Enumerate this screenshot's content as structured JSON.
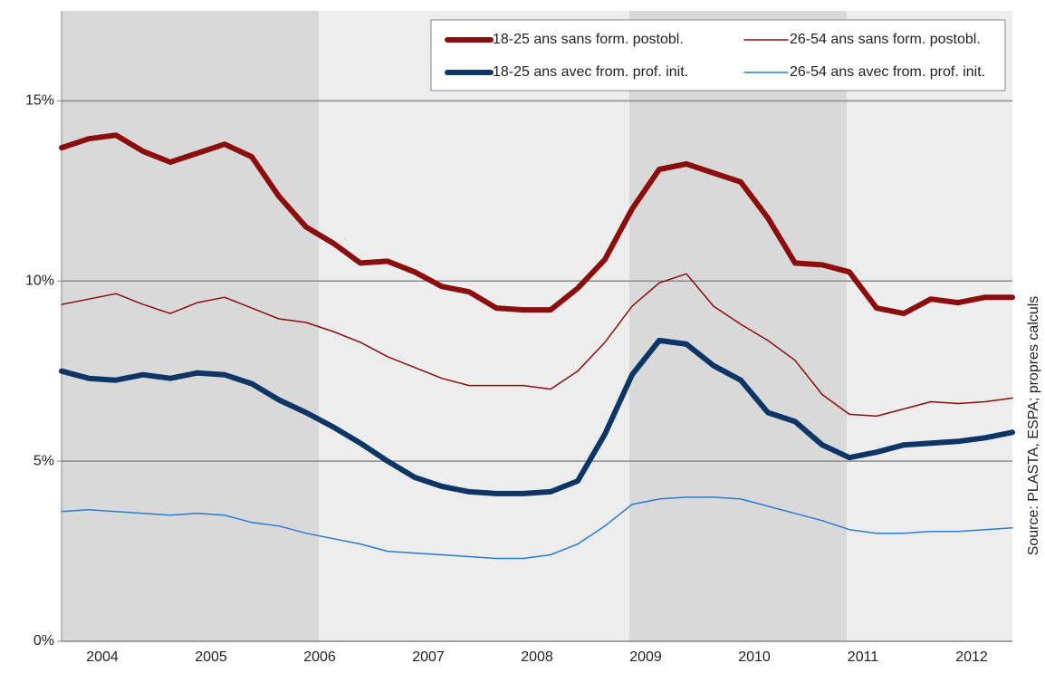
{
  "chart_data": {
    "type": "line",
    "source": "Source: PLASTA, ESPA; propres calculs",
    "categories": [
      null,
      "2004",
      null,
      null,
      null,
      "2005",
      null,
      null,
      null,
      "2006",
      null,
      null,
      null,
      "2007",
      null,
      null,
      null,
      "2008",
      null,
      null,
      null,
      "2009",
      null,
      null,
      null,
      "2010",
      null,
      null,
      null,
      "2011",
      null,
      null,
      null,
      "2012",
      null,
      null
    ],
    "series": [
      {
        "name": "18-25 ans sans form. postobl.",
        "color": "#8b0d0d",
        "line_width": 6,
        "values": [
          13.7,
          13.95,
          14.05,
          13.6,
          13.3,
          13.55,
          13.8,
          13.45,
          12.35,
          11.5,
          11.05,
          10.5,
          10.55,
          10.25,
          9.85,
          9.7,
          9.25,
          9.2,
          9.2,
          9.8,
          10.6,
          12.0,
          13.1,
          13.25,
          13.0,
          12.75,
          11.75,
          10.5,
          10.45,
          10.25,
          9.25,
          9.1,
          9.5,
          9.4,
          9.55,
          9.55
        ]
      },
      {
        "name": "26-54 ans sans form. postobl.",
        "color": "#8b0d0d",
        "line_width": 1.5,
        "values": [
          9.35,
          9.5,
          9.65,
          9.35,
          9.1,
          9.4,
          9.55,
          9.25,
          8.95,
          8.85,
          8.6,
          8.3,
          7.9,
          7.6,
          7.3,
          7.1,
          7.1,
          7.1,
          7.0,
          7.5,
          8.3,
          9.3,
          9.95,
          10.2,
          9.3,
          8.8,
          8.35,
          7.8,
          6.85,
          6.3,
          6.25,
          6.45,
          6.65,
          6.6,
          6.65,
          6.75
        ]
      },
      {
        "name": "18-25 ans avec from. prof. init.",
        "color": "#0d3565",
        "line_width": 6,
        "values": [
          7.5,
          7.3,
          7.25,
          7.4,
          7.3,
          7.45,
          7.4,
          7.15,
          6.7,
          6.35,
          5.95,
          5.5,
          5.0,
          4.55,
          4.3,
          4.15,
          4.1,
          4.1,
          4.15,
          4.45,
          5.75,
          7.4,
          8.35,
          8.25,
          7.65,
          7.25,
          6.35,
          6.1,
          5.45,
          5.1,
          5.25,
          5.45,
          5.5,
          5.55,
          5.65,
          5.8
        ]
      },
      {
        "name": "26-54 ans avec from. prof. init.",
        "color": "#2a7bd4",
        "line_width": 1.5,
        "values": [
          3.6,
          3.65,
          3.6,
          3.55,
          3.5,
          3.55,
          3.5,
          3.3,
          3.2,
          3.0,
          2.85,
          2.7,
          2.5,
          2.45,
          2.4,
          2.35,
          2.3,
          2.3,
          2.4,
          2.7,
          3.2,
          3.8,
          3.95,
          4.0,
          4.0,
          3.95,
          3.75,
          3.55,
          3.35,
          3.1,
          3.0,
          3.0,
          3.05,
          3.05,
          3.1,
          3.15
        ]
      }
    ],
    "ylim": [
      0,
      17.5
    ],
    "yticks": [
      {
        "value": 0,
        "label": "0%"
      },
      {
        "value": 5,
        "label": "5%"
      },
      {
        "value": 10,
        "label": "10%"
      },
      {
        "value": 15,
        "label": "15%"
      }
    ],
    "grid": true,
    "legend": "top-right"
  }
}
